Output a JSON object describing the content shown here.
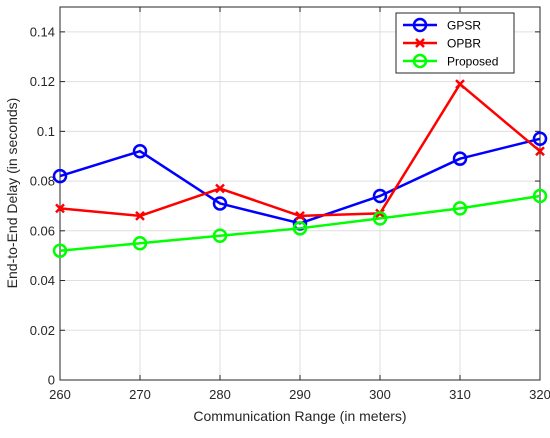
{
  "chart_data": {
    "type": "line",
    "title": "",
    "xlabel": "Communication Range (in meters)",
    "ylabel": "End-to-End Delay (in seconds)",
    "x": [
      260,
      270,
      280,
      290,
      300,
      310,
      320
    ],
    "xlim": [
      260,
      320
    ],
    "ylim": [
      0,
      0.15
    ],
    "xticks": [
      260,
      270,
      280,
      290,
      300,
      310,
      320
    ],
    "xtick_labels": [
      "260",
      "270",
      "280",
      "290",
      "300",
      "310",
      "320"
    ],
    "yticks": [
      0,
      0.02,
      0.04,
      0.06,
      0.08,
      0.1,
      0.12,
      0.14
    ],
    "ytick_labels": [
      "0",
      "0.02",
      "0.04",
      "0.06",
      "0.08",
      "0.1",
      "0.12",
      "0.14"
    ],
    "grid": true,
    "legend_position": "top-right",
    "series": [
      {
        "name": "GPSR",
        "color": "#0000ff",
        "marker": "circle",
        "values": [
          0.082,
          0.092,
          0.071,
          0.063,
          0.074,
          0.089,
          0.097
        ]
      },
      {
        "name": "OPBR",
        "color": "#ff0000",
        "marker": "x",
        "values": [
          0.069,
          0.066,
          0.077,
          0.066,
          0.067,
          0.119,
          0.092
        ]
      },
      {
        "name": "Proposed",
        "color": "#00ff00",
        "marker": "circle",
        "values": [
          0.052,
          0.055,
          0.058,
          0.061,
          0.065,
          0.069,
          0.074
        ]
      }
    ]
  }
}
